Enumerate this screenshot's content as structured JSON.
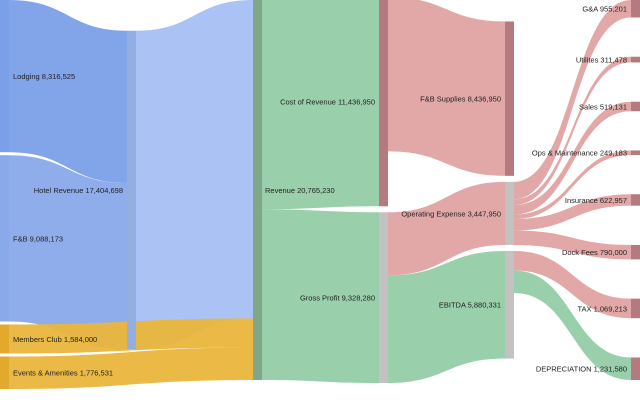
{
  "chart_data": {
    "type": "sankey",
    "title": "",
    "nodes": [
      {
        "id": "lodging",
        "name": "Lodging",
        "value": 8316525,
        "color": "#7b9fe8"
      },
      {
        "id": "fb",
        "name": "F&B",
        "value": 9088173,
        "color": "#8aa9ea"
      },
      {
        "id": "members",
        "name": "Members Club",
        "value": 1584000,
        "color": "#e2a92c"
      },
      {
        "id": "events",
        "name": "Events & Amenities",
        "value": 1776531,
        "color": "#e2a92c"
      },
      {
        "id": "hotel",
        "name": "Hotel Revenue",
        "value": 17404698,
        "color": "#93aee0"
      },
      {
        "id": "revenue",
        "name": "Revenue",
        "value": 20765230,
        "color": "#7fa88a"
      },
      {
        "id": "cor",
        "name": "Cost of Revenue",
        "value": 11436950,
        "color": "#b57a7f"
      },
      {
        "id": "gp",
        "name": "Gross Profit",
        "value": 9328280,
        "color": "#c2c2c2"
      },
      {
        "id": "fbs",
        "name": "F&B Supplies",
        "value": 8436950,
        "color": "#b57a7f"
      },
      {
        "id": "opex",
        "name": "Operating Expense",
        "value": 3447950,
        "color": "#c2c2c2"
      },
      {
        "id": "ebitda",
        "name": "EBITDA",
        "value": 5880331,
        "color": "#c2c2c2"
      },
      {
        "id": "ga",
        "name": "G&A",
        "value": 955201,
        "color": "#b57a7f"
      },
      {
        "id": "util",
        "name": "Utilites",
        "value": 311478,
        "color": "#b57a7f"
      },
      {
        "id": "sales",
        "name": "Sales",
        "value": 519131,
        "color": "#b57a7f"
      },
      {
        "id": "ops",
        "name": "Ops & Maintenance",
        "value": 249183,
        "color": "#b57a7f"
      },
      {
        "id": "ins",
        "name": "Insurance",
        "value": 622957,
        "color": "#b57a7f"
      },
      {
        "id": "dock",
        "name": "Dock Fees",
        "value": 790000,
        "color": "#b57a7f"
      },
      {
        "id": "tax",
        "name": "TAX",
        "value": 1069213,
        "color": "#b57a7f"
      },
      {
        "id": "dep",
        "name": "DEPRECIATION",
        "value": 1231580,
        "color": "#b57a7f"
      }
    ],
    "links": [
      {
        "source": "lodging",
        "target": "hotel",
        "value": 8316525,
        "color": "#7b9fe8"
      },
      {
        "source": "fb",
        "target": "hotel",
        "value": 9088173,
        "color": "#8aa9ea"
      },
      {
        "source": "hotel",
        "target": "revenue",
        "value": 17404698,
        "color": "#a5bff3"
      },
      {
        "source": "members",
        "target": "revenue",
        "value": 1584000,
        "color": "#eab63c"
      },
      {
        "source": "events",
        "target": "revenue",
        "value": 1776531,
        "color": "#eab63c"
      },
      {
        "source": "revenue",
        "target": "cor",
        "value": 11436950,
        "color": "#93cca6"
      },
      {
        "source": "revenue",
        "target": "gp",
        "value": 9328280,
        "color": "#93cca6"
      },
      {
        "source": "cor",
        "target": "fbs",
        "value": 8436950,
        "color": "#e0a3a3"
      },
      {
        "source": "gp",
        "target": "opex",
        "value": 3447950,
        "color": "#e0a3a3"
      },
      {
        "source": "gp",
        "target": "ebitda",
        "value": 5880331,
        "color": "#93cca6"
      },
      {
        "source": "opex",
        "target": "ga",
        "value": 955201,
        "color": "#e0a3a3"
      },
      {
        "source": "opex",
        "target": "util",
        "value": 311478,
        "color": "#e0a3a3"
      },
      {
        "source": "opex",
        "target": "sales",
        "value": 519131,
        "color": "#e0a3a3"
      },
      {
        "source": "opex",
        "target": "ops",
        "value": 249183,
        "color": "#e0a3a3"
      },
      {
        "source": "opex",
        "target": "ins",
        "value": 622957,
        "color": "#e0a3a3"
      },
      {
        "source": "opex",
        "target": "dock",
        "value": 790000,
        "color": "#e0a3a3"
      },
      {
        "source": "ebitda",
        "target": "tax",
        "value": 1069213,
        "color": "#e0a3a3"
      },
      {
        "source": "ebitda",
        "target": "dep",
        "value": 1231580,
        "color": "#93cca6"
      }
    ]
  }
}
